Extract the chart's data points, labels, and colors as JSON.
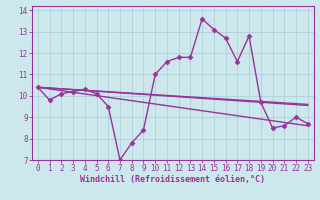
{
  "xlabel": "Windchill (Refroidissement éolien,°C)",
  "bg_color": "#cce8ec",
  "line_color": "#993399",
  "xlim": [
    -0.5,
    23.5
  ],
  "ylim": [
    7,
    14.2
  ],
  "xticks": [
    0,
    1,
    2,
    3,
    4,
    5,
    6,
    7,
    8,
    9,
    10,
    11,
    12,
    13,
    14,
    15,
    16,
    17,
    18,
    19,
    20,
    21,
    22,
    23
  ],
  "yticks": [
    7,
    8,
    9,
    10,
    11,
    12,
    13,
    14
  ],
  "series_main": {
    "x": [
      0,
      1,
      2,
      3,
      4,
      5,
      6,
      7,
      8,
      9,
      10,
      11,
      12,
      13,
      14,
      15,
      16,
      17,
      18,
      19,
      20,
      21,
      22,
      23
    ],
    "y": [
      10.4,
      9.8,
      10.1,
      10.2,
      10.3,
      10.1,
      9.5,
      7.0,
      7.8,
      8.4,
      11.0,
      11.6,
      11.8,
      11.8,
      13.6,
      13.1,
      12.7,
      11.6,
      12.8,
      9.7,
      8.5,
      8.6,
      9.0,
      8.7
    ]
  },
  "trend_lines": [
    {
      "x": [
        0,
        23
      ],
      "y": [
        10.4,
        9.6
      ]
    },
    {
      "x": [
        0,
        23
      ],
      "y": [
        10.4,
        8.6
      ]
    },
    {
      "x": [
        0,
        23
      ],
      "y": [
        10.4,
        9.55
      ]
    }
  ],
  "grid_color": "#aaccd4",
  "marker": "D",
  "markersize": 2.5,
  "linewidth": 1.0,
  "tick_fontsize": 5.5,
  "xlabel_fontsize": 6.0
}
